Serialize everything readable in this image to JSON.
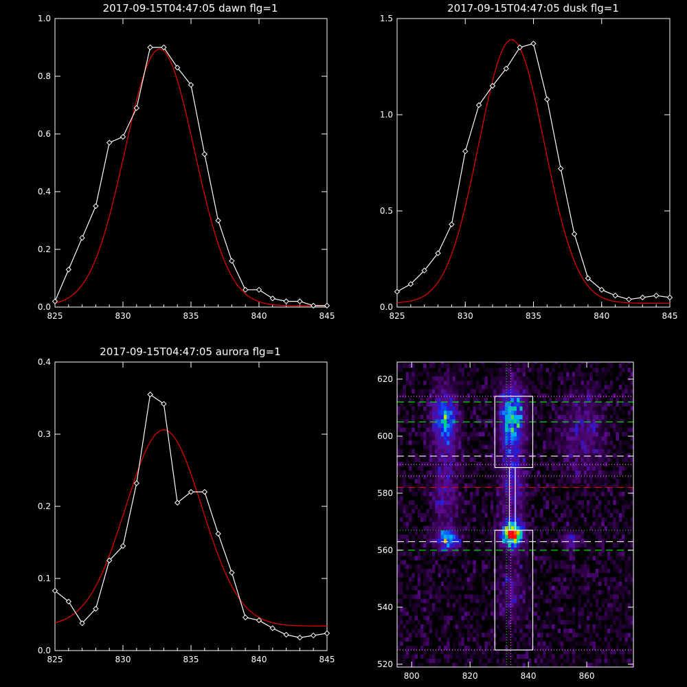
{
  "colors": {
    "background": "#000000",
    "data_line": "#ffffff",
    "fit_line": "#dd0000",
    "axis": "#ffffff",
    "green_dash": "#00dd00",
    "magenta_dot": "#ff66ff",
    "red_dash": "#dd0000",
    "white_dash": "#ffffff"
  },
  "chart_data": [
    {
      "type": "line",
      "title": "2017-09-15T04:47:05 dawn flg=1",
      "xlabel": "",
      "ylabel": "",
      "xlim": [
        825,
        845
      ],
      "ylim": [
        0,
        1.0
      ],
      "xticks": [
        "825",
        "830",
        "835",
        "840",
        "845"
      ],
      "yticks": [
        "0.0",
        "0.2",
        "0.4",
        "0.6",
        "0.8",
        "1.0"
      ],
      "series": [
        {
          "style": "data",
          "x": [
            825,
            826,
            827,
            828,
            829,
            830,
            831,
            832,
            833,
            834,
            835,
            836,
            837,
            838,
            839,
            840,
            841,
            842,
            843,
            844,
            845
          ],
          "values": [
            0.02,
            0.13,
            0.24,
            0.35,
            0.57,
            0.59,
            0.69,
            0.9,
            0.9,
            0.83,
            0.77,
            0.53,
            0.3,
            0.16,
            0.06,
            0.06,
            0.03,
            0.02,
            0.02,
            0.005,
            0.005
          ]
        },
        {
          "style": "fit",
          "fit": "gaussian",
          "amplitude": 0.89,
          "center": 832.7,
          "sigma": 2.55,
          "offset": 0.004
        }
      ]
    },
    {
      "type": "line",
      "title": "2017-09-15T04:47:05 dusk flg=1",
      "xlabel": "",
      "ylabel": "",
      "xlim": [
        825,
        845
      ],
      "ylim": [
        0,
        1.5
      ],
      "xticks": [
        "825",
        "830",
        "835",
        "840",
        "845"
      ],
      "yticks": [
        "0.0",
        "0.5",
        "1.0",
        "1.5"
      ],
      "series": [
        {
          "style": "data",
          "x": [
            825,
            826,
            827,
            828,
            829,
            830,
            831,
            832,
            833,
            834,
            835,
            836,
            837,
            838,
            839,
            840,
            841,
            842,
            843,
            844,
            845
          ],
          "values": [
            0.08,
            0.12,
            0.19,
            0.28,
            0.43,
            0.81,
            1.05,
            1.15,
            1.24,
            1.35,
            1.37,
            1.08,
            0.72,
            0.38,
            0.15,
            0.09,
            0.06,
            0.04,
            0.05,
            0.06,
            0.05
          ]
        },
        {
          "style": "fit",
          "fit": "gaussian",
          "amplitude": 1.37,
          "center": 833.4,
          "sigma": 2.4,
          "offset": 0.02
        }
      ]
    },
    {
      "type": "line",
      "title": "2017-09-15T04:47:05 aurora flg=1",
      "xlabel": "",
      "ylabel": "",
      "xlim": [
        825,
        845
      ],
      "ylim": [
        0,
        0.4
      ],
      "xticks": [
        "825",
        "830",
        "835",
        "840",
        "845"
      ],
      "yticks": [
        "0.0",
        "0.1",
        "0.2",
        "0.3",
        "0.4"
      ],
      "series": [
        {
          "style": "data",
          "x": [
            825,
            826,
            827,
            828,
            829,
            830,
            831,
            832,
            833,
            834,
            835,
            836,
            837,
            838,
            839,
            840,
            841,
            842,
            843,
            844,
            845
          ],
          "values": [
            0.083,
            0.068,
            0.038,
            0.058,
            0.125,
            0.145,
            0.232,
            0.355,
            0.342,
            0.205,
            0.22,
            0.22,
            0.162,
            0.108,
            0.046,
            0.042,
            0.031,
            0.022,
            0.018,
            0.021,
            0.024
          ]
        },
        {
          "style": "fit",
          "fit": "gaussian",
          "amplitude": 0.272,
          "center": 833.0,
          "sigma": 2.8,
          "offset": 0.034
        }
      ]
    },
    {
      "type": "heatmap",
      "title": "",
      "xlabel": "",
      "ylabel": "",
      "xlim": [
        795,
        876
      ],
      "ylim": [
        519,
        626
      ],
      "xticks": [
        "800",
        "820",
        "840",
        "860"
      ],
      "yticks": [
        "520",
        "540",
        "560",
        "580",
        "600",
        "620"
      ],
      "blobs": [
        {
          "x": 811,
          "y": 605,
          "intensity": 0.55,
          "sx": 3,
          "sy": 7
        },
        {
          "x": 834,
          "y": 606,
          "intensity": 0.6,
          "sx": 3,
          "sy": 8
        },
        {
          "x": 812,
          "y": 563,
          "intensity": 0.6,
          "sx": 2.5,
          "sy": 2.5
        },
        {
          "x": 834,
          "y": 565,
          "intensity": 1.0,
          "sx": 2.5,
          "sy": 3
        },
        {
          "x": 854,
          "y": 563,
          "intensity": 0.35,
          "sx": 2,
          "sy": 2
        },
        {
          "x": 811,
          "y": 580,
          "intensity": 0.25,
          "sx": 3,
          "sy": 10
        },
        {
          "x": 834,
          "y": 582,
          "intensity": 0.3,
          "sx": 3,
          "sy": 10
        },
        {
          "x": 858,
          "y": 600,
          "intensity": 0.22,
          "sx": 5,
          "sy": 10
        },
        {
          "x": 834,
          "y": 545,
          "intensity": 0.2,
          "sx": 3,
          "sy": 8
        }
      ],
      "boxes": [
        {
          "x0": 828.5,
          "x1": 841.5,
          "y0": 589,
          "y1": 614
        },
        {
          "x0": 828.5,
          "x1": 841.5,
          "y0": 525,
          "y1": 567
        },
        {
          "x0": 833.5,
          "x1": 835.5,
          "y0": 567,
          "y1": 589
        }
      ],
      "hlines": [
        {
          "y": 612,
          "style": "green-dash"
        },
        {
          "y": 605,
          "style": "green-dash"
        },
        {
          "y": 593,
          "style": "white-dash"
        },
        {
          "y": 590,
          "style": "magenta-dot"
        },
        {
          "y": 586,
          "style": "magenta-dot"
        },
        {
          "y": 582,
          "style": "red-dash"
        },
        {
          "y": 567,
          "style": "green-dot"
        },
        {
          "y": 563,
          "style": "white-dash"
        },
        {
          "y": 560,
          "style": "green-dash"
        },
        {
          "y": 614,
          "style": "magenta-dot"
        },
        {
          "y": 525,
          "style": "magenta-dot"
        }
      ],
      "vlines": [
        {
          "x": 832.5,
          "style": "green-dot"
        },
        {
          "x": 834,
          "style": "magenta-dot"
        }
      ]
    }
  ]
}
